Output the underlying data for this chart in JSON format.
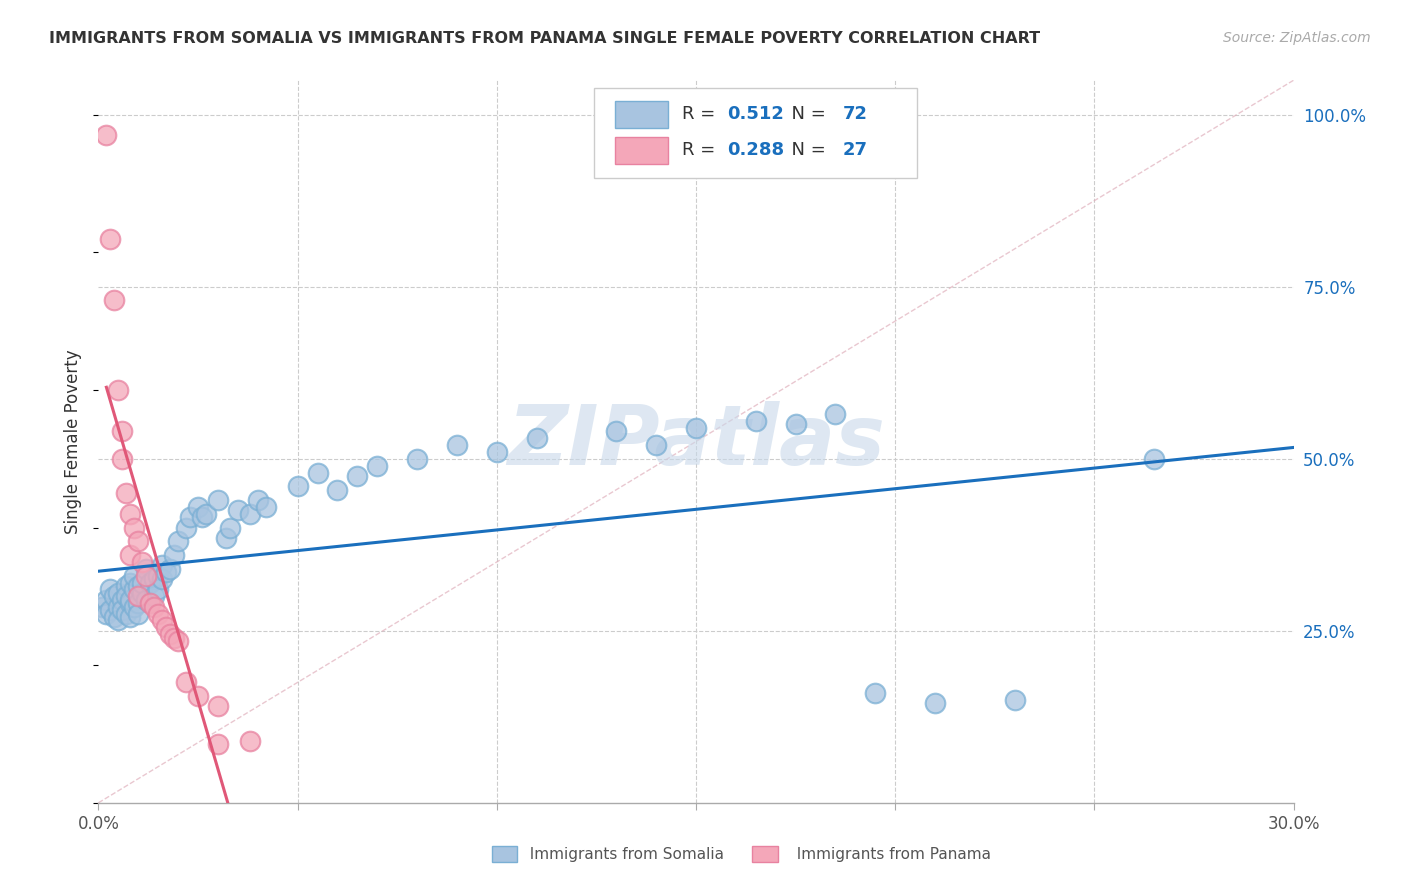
{
  "title": "IMMIGRANTS FROM SOMALIA VS IMMIGRANTS FROM PANAMA SINGLE FEMALE POVERTY CORRELATION CHART",
  "source": "Source: ZipAtlas.com",
  "ylabel": "Single Female Poverty",
  "xlim": [
    0.0,
    0.3
  ],
  "ylim": [
    0.0,
    1.05
  ],
  "somalia_color": "#a8c4e0",
  "somalia_edge_color": "#7aafd4",
  "panama_color": "#f4a7b9",
  "panama_edge_color": "#e882a0",
  "somalia_R": 0.512,
  "somalia_N": 72,
  "panama_R": 0.288,
  "panama_N": 27,
  "diagonal_line_color": "#d0d0d0",
  "somalia_line_color": "#1a6fbd",
  "panama_line_color": "#e05878",
  "watermark": "ZIPatlas",
  "watermark_color": "#c8d8ea",
  "legend_R_N_color": "#1a6fbd",
  "legend_text_color": "#333333",
  "right_axis_color": "#1a6fbd",
  "bottom_legend_somalia_color": "#7aafd4",
  "bottom_legend_panama_color": "#e882a0",
  "somalia_points": [
    [
      0.001,
      0.285
    ],
    [
      0.002,
      0.295
    ],
    [
      0.002,
      0.275
    ],
    [
      0.003,
      0.31
    ],
    [
      0.003,
      0.28
    ],
    [
      0.004,
      0.3
    ],
    [
      0.004,
      0.27
    ],
    [
      0.005,
      0.285
    ],
    [
      0.005,
      0.305
    ],
    [
      0.005,
      0.265
    ],
    [
      0.006,
      0.295
    ],
    [
      0.006,
      0.28
    ],
    [
      0.007,
      0.315
    ],
    [
      0.007,
      0.275
    ],
    [
      0.007,
      0.3
    ],
    [
      0.008,
      0.29
    ],
    [
      0.008,
      0.32
    ],
    [
      0.008,
      0.27
    ],
    [
      0.008,
      0.295
    ],
    [
      0.009,
      0.285
    ],
    [
      0.009,
      0.31
    ],
    [
      0.009,
      0.33
    ],
    [
      0.01,
      0.29
    ],
    [
      0.01,
      0.315
    ],
    [
      0.01,
      0.275
    ],
    [
      0.011,
      0.305
    ],
    [
      0.011,
      0.32
    ],
    [
      0.012,
      0.34
    ],
    [
      0.012,
      0.295
    ],
    [
      0.013,
      0.32
    ],
    [
      0.013,
      0.29
    ],
    [
      0.014,
      0.325
    ],
    [
      0.014,
      0.3
    ],
    [
      0.015,
      0.33
    ],
    [
      0.015,
      0.31
    ],
    [
      0.016,
      0.345
    ],
    [
      0.016,
      0.325
    ],
    [
      0.017,
      0.335
    ],
    [
      0.018,
      0.34
    ],
    [
      0.019,
      0.36
    ],
    [
      0.02,
      0.38
    ],
    [
      0.022,
      0.4
    ],
    [
      0.023,
      0.415
    ],
    [
      0.025,
      0.43
    ],
    [
      0.026,
      0.415
    ],
    [
      0.027,
      0.42
    ],
    [
      0.03,
      0.44
    ],
    [
      0.032,
      0.385
    ],
    [
      0.033,
      0.4
    ],
    [
      0.035,
      0.425
    ],
    [
      0.038,
      0.42
    ],
    [
      0.04,
      0.44
    ],
    [
      0.042,
      0.43
    ],
    [
      0.05,
      0.46
    ],
    [
      0.055,
      0.48
    ],
    [
      0.06,
      0.455
    ],
    [
      0.065,
      0.475
    ],
    [
      0.07,
      0.49
    ],
    [
      0.08,
      0.5
    ],
    [
      0.09,
      0.52
    ],
    [
      0.1,
      0.51
    ],
    [
      0.11,
      0.53
    ],
    [
      0.13,
      0.54
    ],
    [
      0.14,
      0.52
    ],
    [
      0.15,
      0.545
    ],
    [
      0.165,
      0.555
    ],
    [
      0.175,
      0.55
    ],
    [
      0.185,
      0.565
    ],
    [
      0.195,
      0.16
    ],
    [
      0.21,
      0.145
    ],
    [
      0.23,
      0.15
    ],
    [
      0.265,
      0.5
    ]
  ],
  "panama_points": [
    [
      0.002,
      0.97
    ],
    [
      0.003,
      0.82
    ],
    [
      0.004,
      0.73
    ],
    [
      0.005,
      0.6
    ],
    [
      0.006,
      0.54
    ],
    [
      0.006,
      0.5
    ],
    [
      0.007,
      0.45
    ],
    [
      0.008,
      0.42
    ],
    [
      0.008,
      0.36
    ],
    [
      0.009,
      0.4
    ],
    [
      0.01,
      0.38
    ],
    [
      0.01,
      0.3
    ],
    [
      0.011,
      0.35
    ],
    [
      0.012,
      0.33
    ],
    [
      0.013,
      0.29
    ],
    [
      0.014,
      0.285
    ],
    [
      0.015,
      0.275
    ],
    [
      0.016,
      0.265
    ],
    [
      0.017,
      0.255
    ],
    [
      0.018,
      0.245
    ],
    [
      0.019,
      0.24
    ],
    [
      0.02,
      0.235
    ],
    [
      0.022,
      0.175
    ],
    [
      0.025,
      0.155
    ],
    [
      0.03,
      0.14
    ],
    [
      0.03,
      0.085
    ],
    [
      0.038,
      0.09
    ]
  ]
}
